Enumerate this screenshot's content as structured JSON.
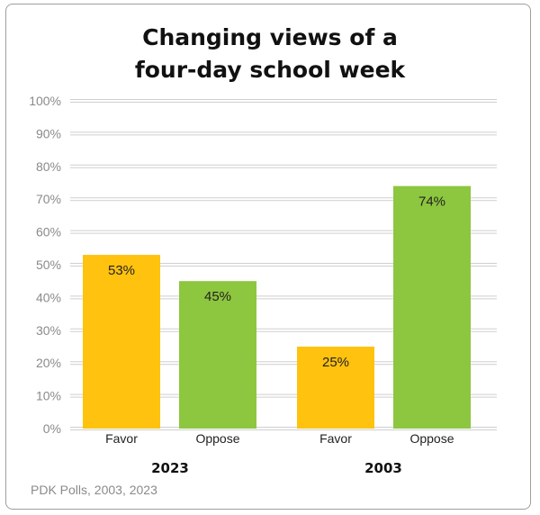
{
  "chart_data": {
    "type": "bar",
    "title_lines": [
      "Changing views of a",
      "four-day school week"
    ],
    "groups": [
      {
        "label": "2023",
        "categories": [
          "Favor",
          "Oppose"
        ],
        "values": [
          53,
          45
        ],
        "value_labels": [
          "53%",
          "45%"
        ]
      },
      {
        "label": "2003",
        "categories": [
          "Favor",
          "Oppose"
        ],
        "values": [
          25,
          74
        ],
        "value_labels": [
          "25%",
          "74%"
        ]
      }
    ],
    "yticks": [
      "0%",
      "10%",
      "20%",
      "30%",
      "40%",
      "50%",
      "60%",
      "70%",
      "80%",
      "90%",
      "100%"
    ],
    "ylim": [
      0,
      100
    ],
    "grid": true,
    "legend": "none",
    "colors": {
      "Favor": "#FFC20E",
      "Oppose": "#8DC63F",
      "grid": "#cfcfcf",
      "tick_text": "#8a8a8a"
    },
    "source": "PDK Polls, 2003, 2023"
  }
}
